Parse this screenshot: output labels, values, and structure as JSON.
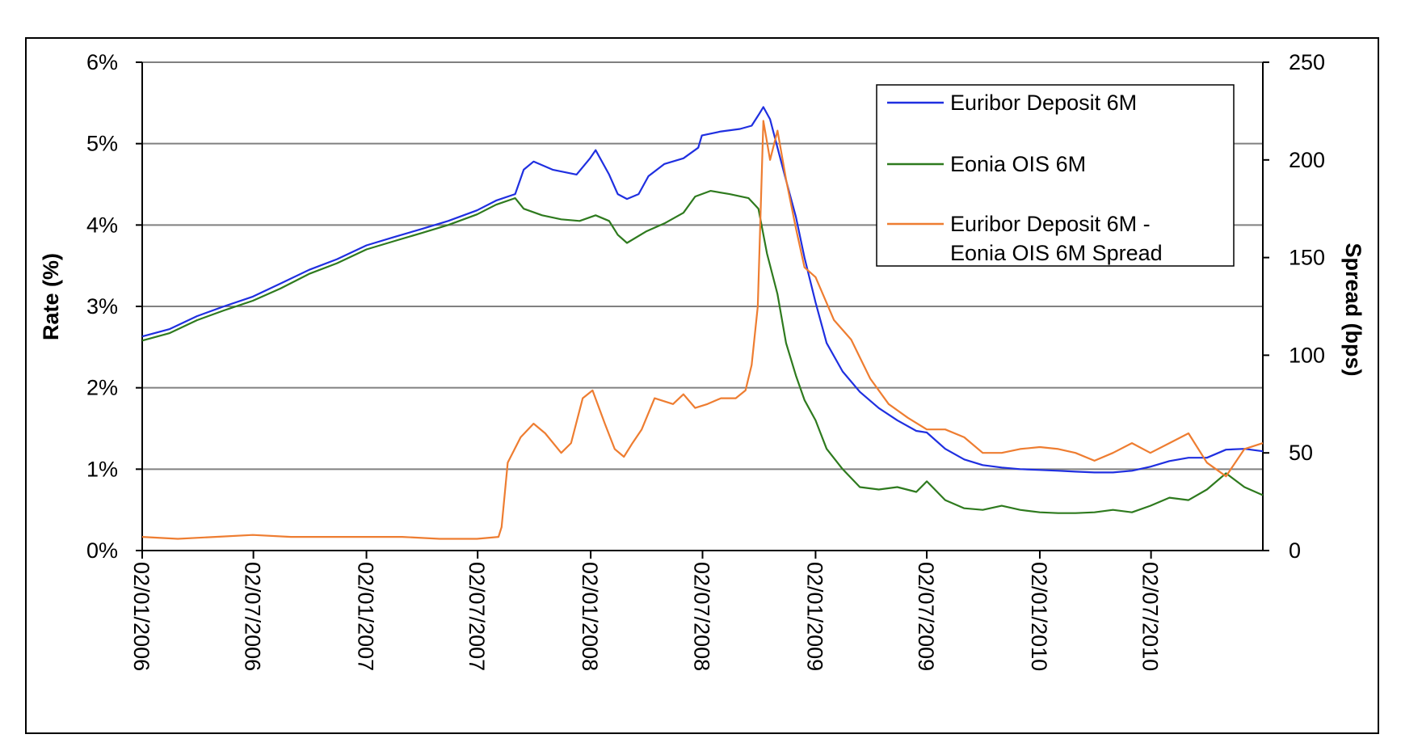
{
  "chart_data": {
    "type": "line",
    "y_axis_left": {
      "label": "Rate (%)",
      "range": [
        0,
        6
      ],
      "tick_values": [
        0,
        1,
        2,
        3,
        4,
        5,
        6
      ],
      "tick_labels": [
        "0%",
        "1%",
        "2%",
        "3%",
        "4%",
        "5%",
        "6%"
      ]
    },
    "y_axis_right": {
      "label": "Spread (bps)",
      "range": [
        0,
        250
      ],
      "tick_values": [
        0,
        50,
        100,
        150,
        200,
        250
      ],
      "tick_labels": [
        "0",
        "50",
        "100",
        "150",
        "200",
        "250"
      ]
    },
    "x_axis": {
      "type": "date",
      "range": [
        "2006-01-02",
        "2010-12-31"
      ],
      "tick_values": [
        "2006-01-02",
        "2006-07-02",
        "2007-01-02",
        "2007-07-02",
        "2008-01-02",
        "2008-07-02",
        "2009-01-02",
        "2009-07-02",
        "2010-01-02",
        "2010-07-02"
      ],
      "tick_labels": [
        "02/01/2006",
        "02/07/2006",
        "02/01/2007",
        "02/07/2007",
        "02/01/2008",
        "02/07/2008",
        "02/01/2009",
        "02/07/2009",
        "02/01/2010",
        "02/07/2010"
      ]
    },
    "grid": "horizontal",
    "legend_position": "top-right",
    "series": [
      {
        "name": "Euribor Deposit 6M",
        "axis": "left",
        "color": "#1f2fe0",
        "points": [
          [
            "2006-01-02",
            2.63
          ],
          [
            "2006-02-15",
            2.72
          ],
          [
            "2006-04-01",
            2.88
          ],
          [
            "2006-05-15",
            3.0
          ],
          [
            "2006-07-01",
            3.12
          ],
          [
            "2006-08-15",
            3.28
          ],
          [
            "2006-10-01",
            3.45
          ],
          [
            "2006-11-15",
            3.58
          ],
          [
            "2007-01-02",
            3.75
          ],
          [
            "2007-02-15",
            3.85
          ],
          [
            "2007-04-01",
            3.95
          ],
          [
            "2007-05-15",
            4.05
          ],
          [
            "2007-07-01",
            4.18
          ],
          [
            "2007-08-01",
            4.3
          ],
          [
            "2007-09-01",
            4.38
          ],
          [
            "2007-09-15",
            4.68
          ],
          [
            "2007-10-01",
            4.78
          ],
          [
            "2007-11-01",
            4.68
          ],
          [
            "2007-12-10",
            4.62
          ],
          [
            "2008-01-01",
            4.82
          ],
          [
            "2008-01-10",
            4.92
          ],
          [
            "2008-02-01",
            4.62
          ],
          [
            "2008-02-15",
            4.38
          ],
          [
            "2008-03-01",
            4.32
          ],
          [
            "2008-03-20",
            4.38
          ],
          [
            "2008-04-05",
            4.6
          ],
          [
            "2008-05-01",
            4.75
          ],
          [
            "2008-06-01",
            4.82
          ],
          [
            "2008-06-25",
            4.95
          ],
          [
            "2008-07-01",
            5.1
          ],
          [
            "2008-08-01",
            5.15
          ],
          [
            "2008-09-01",
            5.18
          ],
          [
            "2008-09-20",
            5.22
          ],
          [
            "2008-10-01",
            5.35
          ],
          [
            "2008-10-09",
            5.45
          ],
          [
            "2008-10-20",
            5.3
          ],
          [
            "2008-11-01",
            4.95
          ],
          [
            "2008-11-15",
            4.55
          ],
          [
            "2008-12-01",
            4.1
          ],
          [
            "2008-12-15",
            3.6
          ],
          [
            "2009-01-02",
            3.05
          ],
          [
            "2009-01-20",
            2.55
          ],
          [
            "2009-02-15",
            2.2
          ],
          [
            "2009-03-15",
            1.95
          ],
          [
            "2009-04-15",
            1.75
          ],
          [
            "2009-05-15",
            1.6
          ],
          [
            "2009-06-15",
            1.47
          ],
          [
            "2009-07-02",
            1.45
          ],
          [
            "2009-08-01",
            1.25
          ],
          [
            "2009-09-01",
            1.12
          ],
          [
            "2009-10-01",
            1.05
          ],
          [
            "2009-11-01",
            1.02
          ],
          [
            "2009-12-01",
            1.0
          ],
          [
            "2010-01-02",
            0.99
          ],
          [
            "2010-02-01",
            0.98
          ],
          [
            "2010-03-01",
            0.97
          ],
          [
            "2010-04-01",
            0.96
          ],
          [
            "2010-05-01",
            0.96
          ],
          [
            "2010-06-01",
            0.98
          ],
          [
            "2010-07-01",
            1.03
          ],
          [
            "2010-08-01",
            1.1
          ],
          [
            "2010-09-01",
            1.14
          ],
          [
            "2010-10-01",
            1.14
          ],
          [
            "2010-11-01",
            1.24
          ],
          [
            "2010-12-01",
            1.25
          ],
          [
            "2010-12-31",
            1.22
          ]
        ]
      },
      {
        "name": "Eonia OIS 6M",
        "axis": "left",
        "color": "#2e7a1e",
        "points": [
          [
            "2006-01-02",
            2.58
          ],
          [
            "2006-02-15",
            2.67
          ],
          [
            "2006-04-01",
            2.83
          ],
          [
            "2006-05-15",
            2.95
          ],
          [
            "2006-07-01",
            3.07
          ],
          [
            "2006-08-15",
            3.22
          ],
          [
            "2006-10-01",
            3.4
          ],
          [
            "2006-11-15",
            3.53
          ],
          [
            "2007-01-02",
            3.7
          ],
          [
            "2007-02-15",
            3.8
          ],
          [
            "2007-04-01",
            3.9
          ],
          [
            "2007-05-15",
            4.0
          ],
          [
            "2007-07-01",
            4.13
          ],
          [
            "2007-08-01",
            4.25
          ],
          [
            "2007-09-01",
            4.33
          ],
          [
            "2007-09-15",
            4.2
          ],
          [
            "2007-10-15",
            4.12
          ],
          [
            "2007-11-15",
            4.07
          ],
          [
            "2007-12-15",
            4.05
          ],
          [
            "2008-01-10",
            4.12
          ],
          [
            "2008-02-01",
            4.05
          ],
          [
            "2008-02-15",
            3.88
          ],
          [
            "2008-03-01",
            3.78
          ],
          [
            "2008-04-01",
            3.92
          ],
          [
            "2008-05-01",
            4.02
          ],
          [
            "2008-06-01",
            4.15
          ],
          [
            "2008-06-20",
            4.35
          ],
          [
            "2008-07-15",
            4.42
          ],
          [
            "2008-08-15",
            4.38
          ],
          [
            "2008-09-15",
            4.33
          ],
          [
            "2008-10-01",
            4.2
          ],
          [
            "2008-10-15",
            3.65
          ],
          [
            "2008-11-01",
            3.15
          ],
          [
            "2008-11-15",
            2.55
          ],
          [
            "2008-12-01",
            2.15
          ],
          [
            "2008-12-15",
            1.85
          ],
          [
            "2009-01-02",
            1.6
          ],
          [
            "2009-01-20",
            1.25
          ],
          [
            "2009-02-15",
            1.0
          ],
          [
            "2009-03-15",
            0.78
          ],
          [
            "2009-04-15",
            0.75
          ],
          [
            "2009-05-15",
            0.78
          ],
          [
            "2009-06-15",
            0.72
          ],
          [
            "2009-07-02",
            0.85
          ],
          [
            "2009-08-01",
            0.62
          ],
          [
            "2009-09-01",
            0.52
          ],
          [
            "2009-10-01",
            0.5
          ],
          [
            "2009-11-01",
            0.55
          ],
          [
            "2009-12-01",
            0.5
          ],
          [
            "2010-01-02",
            0.47
          ],
          [
            "2010-02-01",
            0.46
          ],
          [
            "2010-03-01",
            0.46
          ],
          [
            "2010-04-01",
            0.47
          ],
          [
            "2010-05-01",
            0.5
          ],
          [
            "2010-06-01",
            0.47
          ],
          [
            "2010-07-01",
            0.55
          ],
          [
            "2010-08-01",
            0.65
          ],
          [
            "2010-09-01",
            0.62
          ],
          [
            "2010-10-01",
            0.75
          ],
          [
            "2010-11-01",
            0.95
          ],
          [
            "2010-12-01",
            0.78
          ],
          [
            "2010-12-31",
            0.68
          ]
        ]
      },
      {
        "name": "Euribor Deposit 6M - Eonia OIS 6M Spread",
        "axis": "right",
        "color": "#ee7d31",
        "points": [
          [
            "2006-01-02",
            7
          ],
          [
            "2006-03-01",
            6
          ],
          [
            "2006-05-01",
            7
          ],
          [
            "2006-07-01",
            8
          ],
          [
            "2006-09-01",
            7
          ],
          [
            "2006-11-01",
            7
          ],
          [
            "2007-01-02",
            7
          ],
          [
            "2007-03-01",
            7
          ],
          [
            "2007-05-01",
            6
          ],
          [
            "2007-07-01",
            6
          ],
          [
            "2007-08-05",
            7
          ],
          [
            "2007-08-10",
            12
          ],
          [
            "2007-08-20",
            45
          ],
          [
            "2007-09-10",
            58
          ],
          [
            "2007-10-01",
            65
          ],
          [
            "2007-10-20",
            60
          ],
          [
            "2007-11-15",
            50
          ],
          [
            "2007-12-01",
            55
          ],
          [
            "2007-12-20",
            78
          ],
          [
            "2008-01-05",
            82
          ],
          [
            "2008-01-25",
            65
          ],
          [
            "2008-02-10",
            52
          ],
          [
            "2008-02-25",
            48
          ],
          [
            "2008-03-10",
            55
          ],
          [
            "2008-03-25",
            62
          ],
          [
            "2008-04-15",
            78
          ],
          [
            "2008-05-15",
            75
          ],
          [
            "2008-06-01",
            80
          ],
          [
            "2008-06-20",
            73
          ],
          [
            "2008-07-10",
            75
          ],
          [
            "2008-08-01",
            78
          ],
          [
            "2008-08-25",
            78
          ],
          [
            "2008-09-10",
            82
          ],
          [
            "2008-09-20",
            95
          ],
          [
            "2008-09-30",
            125
          ],
          [
            "2008-10-09",
            220
          ],
          [
            "2008-10-20",
            200
          ],
          [
            "2008-11-01",
            215
          ],
          [
            "2008-11-15",
            190
          ],
          [
            "2008-12-01",
            165
          ],
          [
            "2008-12-15",
            145
          ],
          [
            "2009-01-02",
            140
          ],
          [
            "2009-02-01",
            118
          ],
          [
            "2009-03-01",
            108
          ],
          [
            "2009-04-01",
            88
          ],
          [
            "2009-05-01",
            75
          ],
          [
            "2009-06-01",
            68
          ],
          [
            "2009-07-02",
            62
          ],
          [
            "2009-08-01",
            62
          ],
          [
            "2009-09-01",
            58
          ],
          [
            "2009-10-01",
            50
          ],
          [
            "2009-11-01",
            50
          ],
          [
            "2009-12-01",
            52
          ],
          [
            "2010-01-02",
            53
          ],
          [
            "2010-02-01",
            52
          ],
          [
            "2010-03-01",
            50
          ],
          [
            "2010-04-01",
            46
          ],
          [
            "2010-05-01",
            50
          ],
          [
            "2010-06-01",
            55
          ],
          [
            "2010-07-01",
            50
          ],
          [
            "2010-08-01",
            55
          ],
          [
            "2010-09-01",
            60
          ],
          [
            "2010-10-01",
            45
          ],
          [
            "2010-11-01",
            38
          ],
          [
            "2010-12-01",
            52
          ],
          [
            "2010-12-31",
            55
          ]
        ]
      }
    ]
  }
}
